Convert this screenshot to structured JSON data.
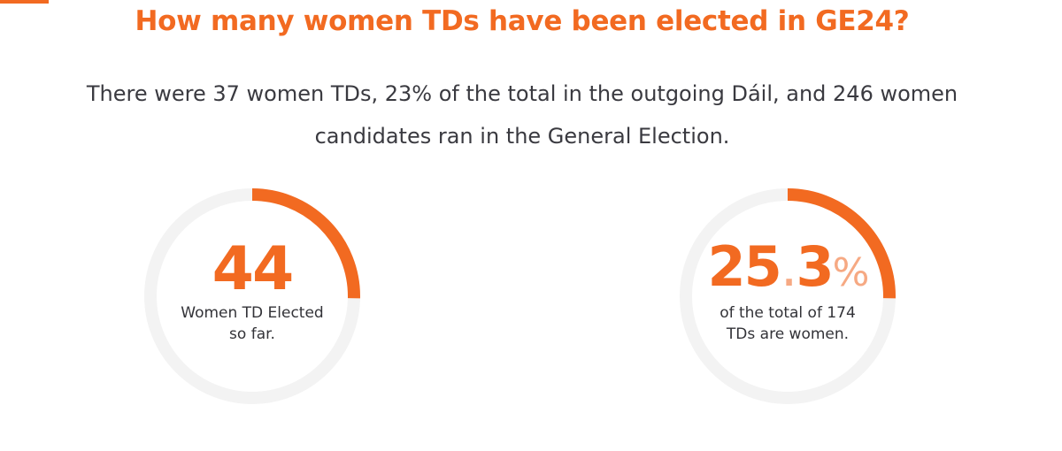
{
  "header": {
    "title": "How many women TDs have been elected in GE24?"
  },
  "intro": {
    "text": "There were 37 women TDs, 23% of the total in the outgoing Dáil, and 246 women candidates ran in the General Election."
  },
  "stats": [
    {
      "value": "44",
      "caption_line1": "Women TD Elected",
      "caption_line2": "so far.",
      "progress_fraction": 0.253
    },
    {
      "value_main": "25",
      "value_dot": ".",
      "value_decimal": "3",
      "value_unit": "%",
      "caption_line1": "of the total of 174",
      "caption_line2": "TDs are women.",
      "progress_fraction": 0.253
    }
  ],
  "colors": {
    "accent": "#f26a21",
    "accent_light": "#f6a983",
    "track": "#f3f3f3",
    "text": "#333338"
  }
}
